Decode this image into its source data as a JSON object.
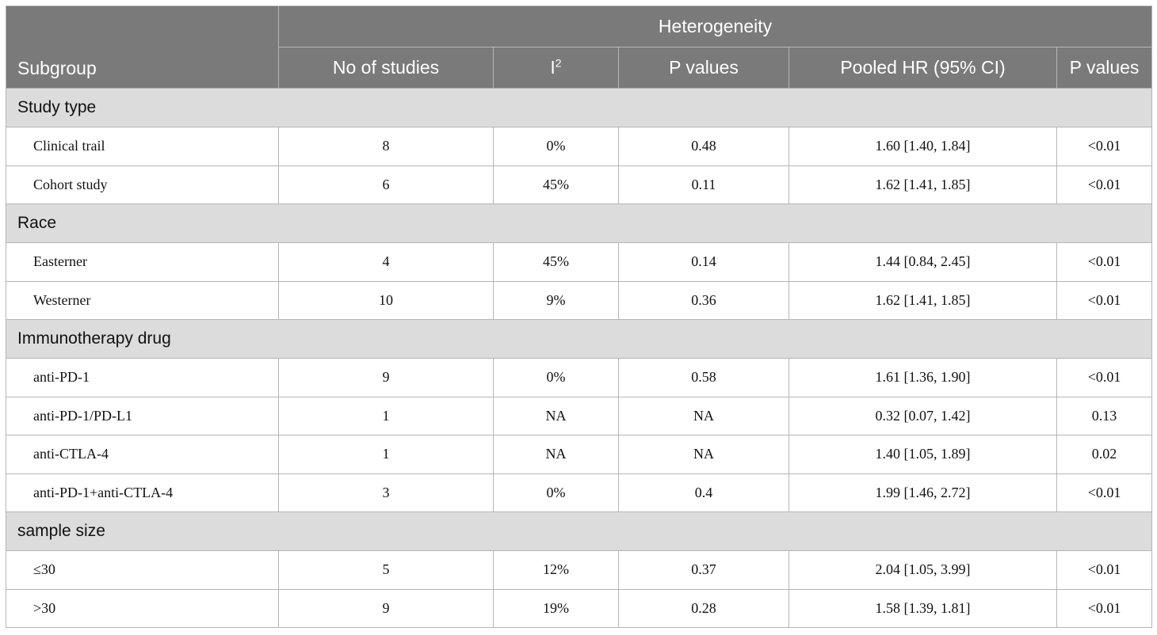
{
  "header": {
    "subgroup": "Subgroup",
    "heterogeneity": "Heterogeneity",
    "no_of_studies": "No of studies",
    "i2_base": "I",
    "i2_sup": "2",
    "p_values_het": "P values",
    "pooled_hr": "Pooled HR (95% CI)",
    "p_values": "P values"
  },
  "groups": [
    {
      "title": "Study type",
      "rows": [
        {
          "subgroup": "Clinical trail",
          "n": "8",
          "i2": "0%",
          "p_het": "0.48",
          "hr": "1.60 [1.40, 1.84]",
          "p": "<0.01"
        },
        {
          "subgroup": "Cohort study",
          "n": "6",
          "i2": "45%",
          "p_het": "0.11",
          "hr": "1.62 [1.41, 1.85]",
          "p": "<0.01"
        }
      ]
    },
    {
      "title": "Race",
      "rows": [
        {
          "subgroup": "Easterner",
          "n": "4",
          "i2": "45%",
          "p_het": "0.14",
          "hr": "1.44 [0.84, 2.45]",
          "p": "<0.01"
        },
        {
          "subgroup": "Westerner",
          "n": "10",
          "i2": "9%",
          "p_het": "0.36",
          "hr": "1.62 [1.41, 1.85]",
          "p": "<0.01"
        }
      ]
    },
    {
      "title": "Immunotherapy drug",
      "rows": [
        {
          "subgroup": "anti-PD-1",
          "n": "9",
          "i2": "0%",
          "p_het": "0.58",
          "hr": "1.61 [1.36, 1.90]",
          "p": "<0.01"
        },
        {
          "subgroup": "anti-PD-1/PD-L1",
          "n": "1",
          "i2": "NA",
          "p_het": "NA",
          "hr": "0.32 [0.07, 1.42]",
          "p": "0.13"
        },
        {
          "subgroup": "anti-CTLA-4",
          "n": "1",
          "i2": "NA",
          "p_het": "NA",
          "hr": "1.40 [1.05, 1.89]",
          "p": "0.02"
        },
        {
          "subgroup": "anti-PD-1+anti-CTLA-4",
          "n": "3",
          "i2": "0%",
          "p_het": "0.4",
          "hr": "1.99 [1.46, 2.72]",
          "p": "<0.01"
        }
      ]
    },
    {
      "title": "sample size",
      "rows": [
        {
          "subgroup": "≤30",
          "n": "5",
          "i2": "12%",
          "p_het": "0.37",
          "hr": "2.04 [1.05, 3.99]",
          "p": "<0.01"
        },
        {
          "subgroup": ">30",
          "n": "9",
          "i2": "19%",
          "p_het": "0.28",
          "hr": "1.58 [1.39, 1.81]",
          "p": "<0.01"
        }
      ]
    }
  ]
}
